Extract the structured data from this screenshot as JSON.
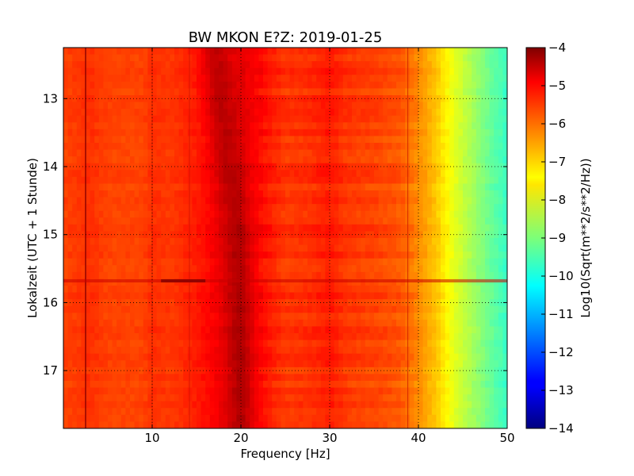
{
  "chart_data": {
    "type": "heatmap",
    "title": "BW MKON E?Z: 2019-01-25",
    "xlabel": "Frequency [Hz]",
    "ylabel": "Lokalzeit (UTC + 1 Stunde)",
    "xlim": [
      0,
      50
    ],
    "ylim": [
      12.25,
      17.85
    ],
    "y_inverted": true,
    "xticks": [
      10,
      20,
      30,
      40,
      50
    ],
    "yticks": [
      13,
      14,
      15,
      16,
      17
    ],
    "grid": true,
    "colorbar": {
      "label": "Log10(Sqrt(m**2/s**2/Hz))",
      "range": [
        -14,
        -4
      ],
      "ticks": [
        -4,
        -5,
        -6,
        -7,
        -8,
        -9,
        -10,
        -11,
        -12,
        -13,
        -14
      ],
      "colormap": "jet"
    },
    "spectrum_profile": {
      "frequency_hz": [
        0,
        3,
        5,
        9,
        10,
        12,
        15,
        17,
        19,
        20,
        22,
        25,
        28,
        30,
        32,
        35,
        38,
        40,
        42,
        44,
        46,
        48,
        50
      ],
      "log10_amplitude": [
        -5.9,
        -5.7,
        -5.9,
        -5.9,
        -5.7,
        -5.8,
        -5.5,
        -5.2,
        -5.1,
        -5.0,
        -5.3,
        -5.8,
        -5.7,
        -5.5,
        -5.8,
        -5.9,
        -6.1,
        -6.6,
        -7.2,
        -8.0,
        -8.6,
        -9.2,
        -9.7
      ]
    },
    "features": {
      "peak_drift_hz": [
        [
          12.25,
          17.0
        ],
        [
          15.0,
          19.5
        ],
        [
          17.85,
          20.0
        ]
      ],
      "narrow_lines_hz": [
        2.5,
        10,
        14.2,
        38.8
      ],
      "transient_hour": 15.68
    }
  }
}
